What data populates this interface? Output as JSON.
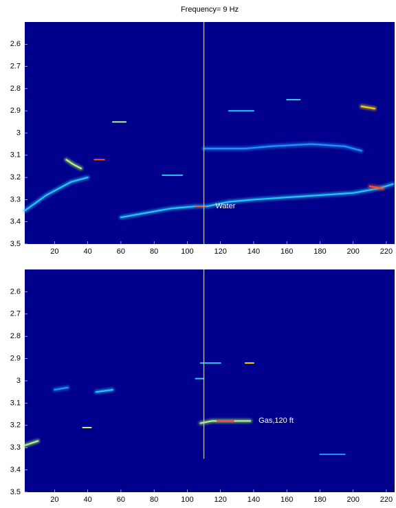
{
  "chart_data": [
    {
      "type": "heatmap",
      "title": "Frequency= 9 Hz",
      "xlim": [
        2,
        225
      ],
      "ylim": [
        2.5,
        3.5
      ],
      "xticks": [
        20,
        40,
        60,
        80,
        100,
        120,
        140,
        160,
        180,
        200,
        220
      ],
      "yticks": [
        2.6,
        2.7,
        2.8,
        2.9,
        3,
        3.1,
        3.2,
        3.3,
        3.4,
        3.5
      ],
      "background": "#00008c",
      "vline": {
        "x": 110,
        "y": [
          2.5,
          3.5
        ],
        "color": "#c8c8c8"
      },
      "annotations": [
        {
          "text": "Water",
          "x": 117,
          "y": 3.33
        }
      ],
      "streaks": [
        {
          "x": [
            60,
            75,
            90,
            105,
            112,
            125,
            140,
            160,
            180,
            200,
            215,
            224
          ],
          "y": [
            3.38,
            3.36,
            3.34,
            3.33,
            3.33,
            3.31,
            3.3,
            3.29,
            3.28,
            3.27,
            3.25,
            3.23
          ],
          "color": "#28c8ff"
        },
        {
          "x": [
            2,
            15,
            30,
            40
          ],
          "y": [
            3.35,
            3.28,
            3.22,
            3.2
          ],
          "color": "#28c8ff"
        },
        {
          "x": [
            27,
            31,
            36
          ],
          "y": [
            3.12,
            3.14,
            3.16
          ],
          "color": "#b4ff6e"
        },
        {
          "x": [
            44,
            50
          ],
          "y": [
            3.12,
            3.12
          ],
          "color": "#ff5028"
        },
        {
          "x": [
            55,
            63
          ],
          "y": [
            2.95,
            2.95
          ],
          "color": "#b4ff6e"
        },
        {
          "x": [
            110,
            135,
            150,
            175,
            195,
            205
          ],
          "y": [
            3.07,
            3.07,
            3.06,
            3.05,
            3.06,
            3.08
          ],
          "color": "#1e96ff"
        },
        {
          "x": [
            125,
            140
          ],
          "y": [
            2.9,
            2.9
          ],
          "color": "#28c8ff"
        },
        {
          "x": [
            205,
            213
          ],
          "y": [
            2.88,
            2.89
          ],
          "color": "#ffd200"
        },
        {
          "x": [
            85,
            97
          ],
          "y": [
            3.19,
            3.19
          ],
          "color": "#28c8ff"
        },
        {
          "x": [
            160,
            168
          ],
          "y": [
            2.85,
            2.85
          ],
          "color": "#28c8ff"
        },
        {
          "x": [
            105,
            111
          ],
          "y": [
            3.33,
            3.33
          ],
          "color": "#ff5028"
        },
        {
          "x": [
            210,
            218
          ],
          "y": [
            3.24,
            3.25
          ],
          "color": "#ff5028"
        }
      ]
    },
    {
      "type": "heatmap",
      "xlim": [
        2,
        225
      ],
      "ylim": [
        2.5,
        3.5
      ],
      "xticks": [
        20,
        40,
        60,
        80,
        100,
        120,
        140,
        160,
        180,
        200,
        220
      ],
      "yticks": [
        2.6,
        2.7,
        2.8,
        2.9,
        3,
        3.1,
        3.2,
        3.3,
        3.4,
        3.5
      ],
      "background": "#00008c",
      "vline": {
        "x": 110,
        "y": [
          2.5,
          3.35
        ],
        "color": "#c8c8c8"
      },
      "annotations": [
        {
          "text": "Gas,120 ft",
          "x": 143,
          "y": 3.18
        }
      ],
      "streaks": [
        {
          "x": [
            108,
            115,
            125,
            138
          ],
          "y": [
            3.19,
            3.18,
            3.18,
            3.18
          ],
          "color": "#b4ff6e"
        },
        {
          "x": [
            118,
            128
          ],
          "y": [
            3.18,
            3.18
          ],
          "color": "#ff5028"
        },
        {
          "x": [
            108,
            120
          ],
          "y": [
            2.92,
            2.92
          ],
          "color": "#28c8ff"
        },
        {
          "x": [
            135,
            140
          ],
          "y": [
            2.92,
            2.92
          ],
          "color": "#ffd200"
        },
        {
          "x": [
            2,
            10
          ],
          "y": [
            3.29,
            3.27
          ],
          "color": "#b4ff6e"
        },
        {
          "x": [
            37,
            42
          ],
          "y": [
            3.21,
            3.21
          ],
          "color": "#b4ff6e"
        },
        {
          "x": [
            105,
            110
          ],
          "y": [
            2.99,
            2.99
          ],
          "color": "#28c8ff"
        },
        {
          "x": [
            45,
            55
          ],
          "y": [
            3.05,
            3.04
          ],
          "color": "#28c8ff"
        },
        {
          "x": [
            20,
            28
          ],
          "y": [
            3.04,
            3.03
          ],
          "color": "#1e96ff"
        },
        {
          "x": [
            180,
            195
          ],
          "y": [
            3.33,
            3.33
          ],
          "color": "#1e96ff"
        }
      ]
    }
  ]
}
